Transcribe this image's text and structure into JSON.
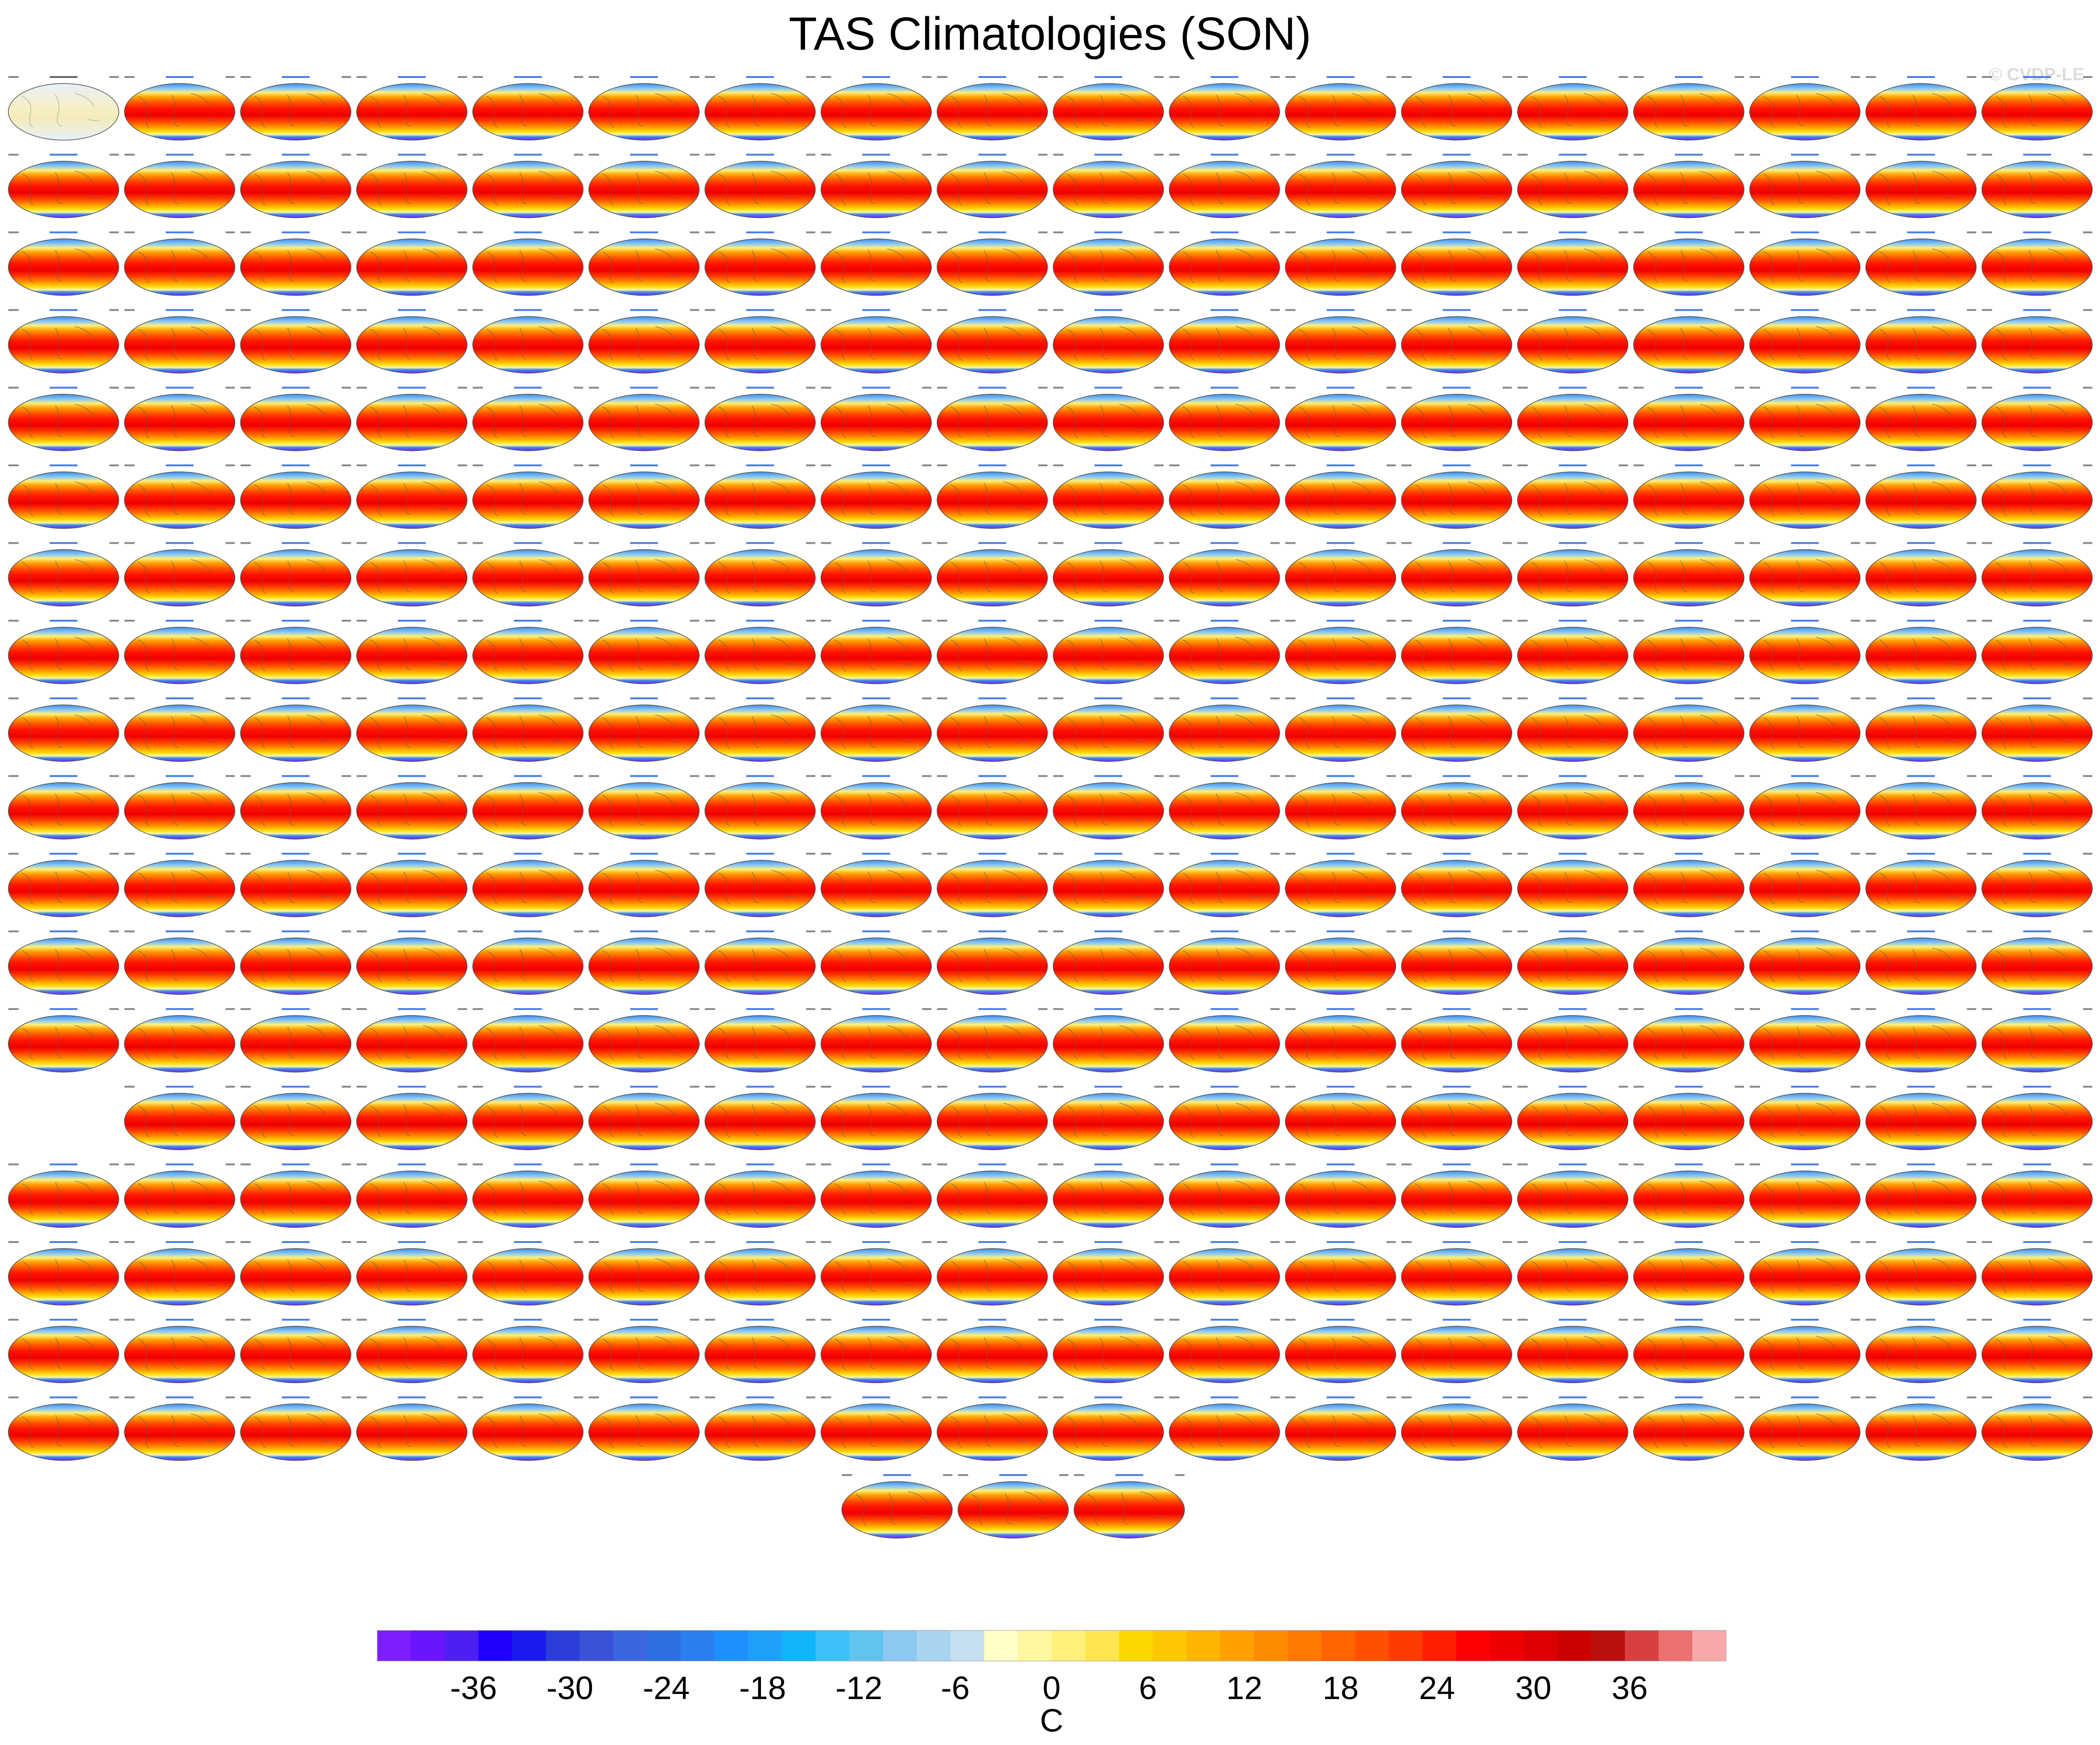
{
  "title": "TAS Climatologies (SON)",
  "watermark": "© CVDP-LE",
  "chart_data": {
    "type": "heatmap",
    "title": "TAS Climatologies (SON)",
    "projection": "robinson-like global maps",
    "panel_grid": {
      "rows": 18,
      "cols": 18,
      "bottom_row_count": 3,
      "bottom_row_start_col": 7,
      "row_14_first_col_empty": true
    },
    "panels": {
      "first_panel_title": "HadCRUT4",
      "second_panel_title": "BEST",
      "model_groups": [
        "CanESM5",
        "CESM2 LENS",
        "CNRM-CM6-1",
        "GISS-E2-1-G",
        "IPSL-CM6A-LR",
        "MIROC6"
      ]
    },
    "colorbar": {
      "unit": "C",
      "tick_labels": [
        "-36",
        "-30",
        "-24",
        "-18",
        "-12",
        "-6",
        "0",
        "6",
        "12",
        "18",
        "24",
        "30",
        "36"
      ],
      "colors": [
        "#7d1eff",
        "#6a14ff",
        "#4f1ef0",
        "#1f00ff",
        "#1a1aee",
        "#2b3fd8",
        "#3a52d8",
        "#3b66e0",
        "#2e70e0",
        "#2a7ff0",
        "#1e90ff",
        "#1fa0f8",
        "#10b4f8",
        "#3cc0f8",
        "#60c4f0",
        "#8cc8f0",
        "#a8d4f0",
        "#c4e0f0",
        "#ffffc8",
        "#fff8a0",
        "#fff07a",
        "#ffe650",
        "#ffd700",
        "#ffc800",
        "#ffb400",
        "#ffa000",
        "#ff8c00",
        "#ff7800",
        "#ff6400",
        "#ff5000",
        "#ff3c00",
        "#ff2000",
        "#ff0000",
        "#ee0000",
        "#dd0000",
        "#cc0000",
        "#bb1010",
        "#d84040",
        "#ec7070",
        "#f8a8a8"
      ],
      "range": [
        -42,
        42
      ]
    },
    "legend_position": "bottom"
  }
}
